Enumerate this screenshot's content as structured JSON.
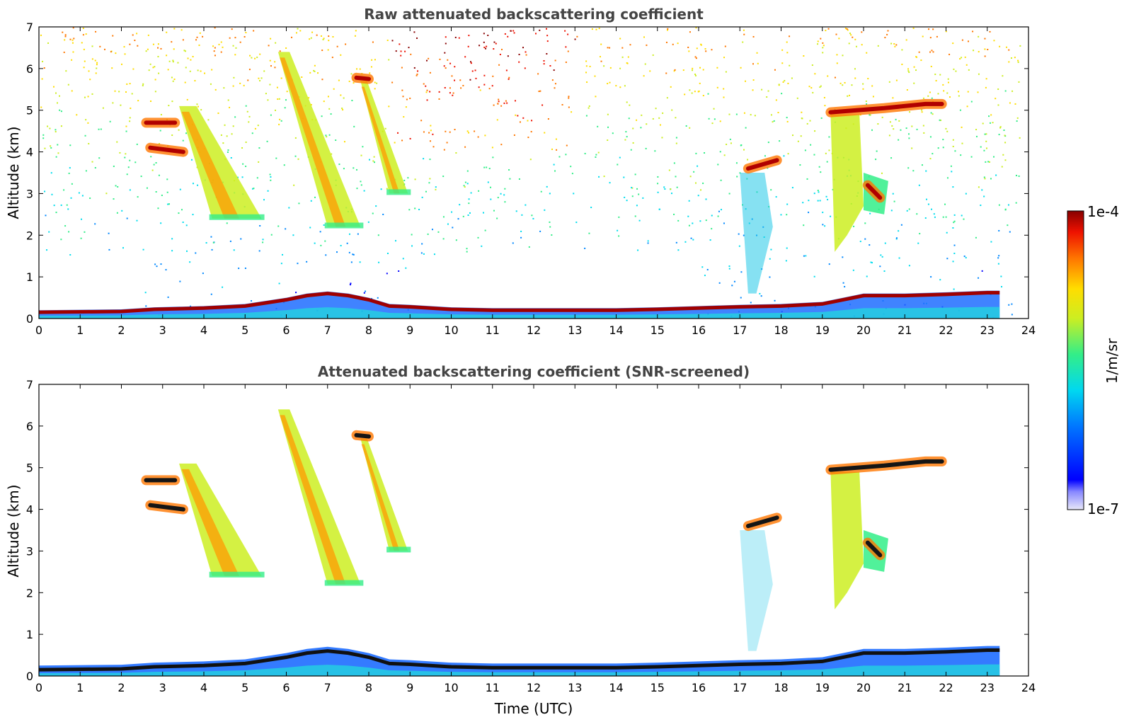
{
  "chart_data": [
    {
      "type": "heatmap",
      "title": "Raw attenuated backscattering coefficient",
      "xlabel": "",
      "ylabel": "Altitude (km)",
      "xlim": [
        0,
        24
      ],
      "ylim": [
        0,
        7
      ],
      "xticks": [
        "0",
        "1",
        "2",
        "3",
        "4",
        "5",
        "6",
        "7",
        "8",
        "9",
        "10",
        "11",
        "12",
        "13",
        "14",
        "15",
        "16",
        "17",
        "18",
        "19",
        "20",
        "21",
        "22",
        "23",
        "24"
      ],
      "yticks": [
        "0",
        "1",
        "2",
        "3",
        "4",
        "5",
        "6",
        "7"
      ],
      "layers": [
        {
          "name": "boundary-layer-top",
          "points": [
            [
              0,
              0.15
            ],
            [
              2,
              0.17
            ],
            [
              2.8,
              0.22
            ],
            [
              4,
              0.25
            ],
            [
              5,
              0.3
            ],
            [
              6,
              0.45
            ],
            [
              6.5,
              0.55
            ],
            [
              7,
              0.6
            ],
            [
              7.5,
              0.55
            ],
            [
              8,
              0.45
            ],
            [
              8.5,
              0.3
            ],
            [
              9,
              0.28
            ],
            [
              10,
              0.22
            ],
            [
              11,
              0.2
            ],
            [
              12,
              0.2
            ],
            [
              13,
              0.2
            ],
            [
              14,
              0.2
            ],
            [
              15,
              0.22
            ],
            [
              16,
              0.25
            ],
            [
              17,
              0.28
            ],
            [
              18,
              0.3
            ],
            [
              19,
              0.35
            ],
            [
              19.5,
              0.45
            ],
            [
              20,
              0.55
            ],
            [
              21,
              0.55
            ],
            [
              22,
              0.58
            ],
            [
              23,
              0.62
            ],
            [
              23.3,
              0.62
            ]
          ]
        },
        {
          "name": "cloud-a",
          "points": [
            [
              2.6,
              4.7
            ],
            [
              3.3,
              4.7
            ]
          ]
        },
        {
          "name": "cloud-b",
          "points": [
            [
              2.7,
              4.1
            ],
            [
              3.5,
              4.0
            ]
          ]
        },
        {
          "name": "cloud-c",
          "points": [
            [
              7.7,
              5.78
            ],
            [
              8.0,
              5.75
            ]
          ]
        },
        {
          "name": "cloud-d",
          "points": [
            [
              17.2,
              3.6
            ],
            [
              17.9,
              3.8
            ]
          ]
        },
        {
          "name": "cloud-e",
          "points": [
            [
              19.2,
              4.95
            ],
            [
              20.5,
              5.05
            ],
            [
              21.5,
              5.15
            ],
            [
              21.9,
              5.15
            ]
          ]
        },
        {
          "name": "cloud-f",
          "points": [
            [
              20.1,
              3.2
            ],
            [
              20.4,
              2.9
            ]
          ]
        }
      ],
      "virga": [
        {
          "top": [
            3.4,
            5.1
          ],
          "bottom": [
            4.2,
            2.4
          ],
          "width": 1.2
        },
        {
          "top": [
            5.8,
            6.4
          ],
          "bottom": [
            7.0,
            2.2
          ],
          "width": 0.8
        },
        {
          "top": [
            7.8,
            5.7
          ],
          "bottom": [
            8.5,
            3.0
          ],
          "width": 0.45
        }
      ]
    },
    {
      "type": "heatmap",
      "title": "Attenuated backscattering coefficient (SNR-screened)",
      "xlabel": "Time (UTC)",
      "ylabel": "Altitude (km)",
      "xlim": [
        0,
        24
      ],
      "ylim": [
        0,
        7
      ],
      "xticks": [
        "0",
        "1",
        "2",
        "3",
        "4",
        "5",
        "6",
        "7",
        "8",
        "9",
        "10",
        "11",
        "12",
        "13",
        "14",
        "15",
        "16",
        "17",
        "18",
        "19",
        "20",
        "21",
        "22",
        "23",
        "24"
      ],
      "yticks": [
        "0",
        "1",
        "2",
        "3",
        "4",
        "5",
        "6",
        "7"
      ]
    }
  ],
  "colorbar": {
    "label": "1/m/sr",
    "max_label": "1e-4",
    "min_label": "1e-7",
    "colormap": [
      "#e8e8f8",
      "#0000ff",
      "#0088ff",
      "#00ddee",
      "#33ee88",
      "#ccee22",
      "#ffdd00",
      "#ff7700",
      "#ee1100",
      "#880000"
    ]
  }
}
